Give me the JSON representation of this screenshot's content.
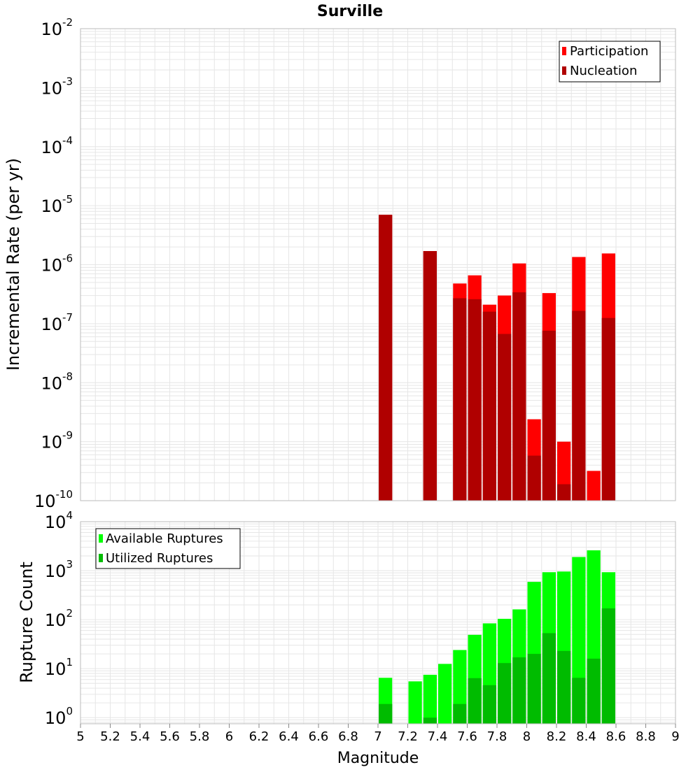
{
  "title": "Surville",
  "colors": {
    "participation": "#ff0000",
    "nucleation": "#b00000",
    "available": "#00ff00",
    "utilized": "#00bb00",
    "grid": "#e6e6e6",
    "frame": "#bbbbbb"
  },
  "chart_data": [
    {
      "type": "bar",
      "scale": "log",
      "title": "Surville",
      "ylabel": "Incremental Rate (per yr)",
      "ylim": [
        1e-10,
        0.01
      ],
      "yticks": [
        {
          "base": "10",
          "exp": "-2"
        },
        {
          "base": "10",
          "exp": "-3"
        },
        {
          "base": "10",
          "exp": "-4"
        },
        {
          "base": "10",
          "exp": "-5"
        },
        {
          "base": "10",
          "exp": "-6"
        },
        {
          "base": "10",
          "exp": "-7"
        },
        {
          "base": "10",
          "exp": "-8"
        },
        {
          "base": "10",
          "exp": "-9"
        },
        {
          "base": "10",
          "exp": "-10"
        }
      ],
      "legend_position": "top-right",
      "series": [
        {
          "name": "Participation",
          "color": "#ff0000",
          "points": [
            {
              "x": 7.05,
              "y": 7e-06
            },
            {
              "x": 7.35,
              "y": 1.7e-06
            },
            {
              "x": 7.55,
              "y": 4.8e-07
            },
            {
              "x": 7.65,
              "y": 6.6e-07
            },
            {
              "x": 7.75,
              "y": 2.1e-07
            },
            {
              "x": 7.85,
              "y": 3e-07
            },
            {
              "x": 7.95,
              "y": 1.05e-06
            },
            {
              "x": 8.05,
              "y": 2.4e-09
            },
            {
              "x": 8.15,
              "y": 3.3e-07
            },
            {
              "x": 8.25,
              "y": 1e-09
            },
            {
              "x": 8.35,
              "y": 1.35e-06
            },
            {
              "x": 8.45,
              "y": 3.2e-10
            },
            {
              "x": 8.55,
              "y": 1.55e-06
            }
          ]
        },
        {
          "name": "Nucleation",
          "color": "#b00000",
          "points": [
            {
              "x": 7.05,
              "y": 7e-06
            },
            {
              "x": 7.35,
              "y": 1.7e-06
            },
            {
              "x": 7.55,
              "y": 2.7e-07
            },
            {
              "x": 7.65,
              "y": 2.6e-07
            },
            {
              "x": 7.75,
              "y": 1.6e-07
            },
            {
              "x": 7.85,
              "y": 6.7e-08
            },
            {
              "x": 7.95,
              "y": 3.4e-07
            },
            {
              "x": 8.05,
              "y": 5.8e-10
            },
            {
              "x": 8.15,
              "y": 7.6e-08
            },
            {
              "x": 8.25,
              "y": 1.9e-10
            },
            {
              "x": 8.35,
              "y": 1.65e-07
            },
            {
              "x": 8.55,
              "y": 1.25e-07
            }
          ]
        }
      ]
    },
    {
      "type": "bar",
      "scale": "log",
      "ylabel": "Rupture Count",
      "xlabel": "Magnitude",
      "ylim": [
        0.75,
        10000
      ],
      "xlim": [
        5,
        9
      ],
      "yticks": [
        {
          "base": "10",
          "exp": "4"
        },
        {
          "base": "10",
          "exp": "3"
        },
        {
          "base": "10",
          "exp": "2"
        },
        {
          "base": "10",
          "exp": "1"
        },
        {
          "base": "10",
          "exp": "0"
        }
      ],
      "xticks": [
        "5",
        "5.2",
        "5.4",
        "5.6",
        "5.8",
        "6",
        "6.2",
        "6.4",
        "6.6",
        "6.8",
        "7",
        "7.2",
        "7.4",
        "7.6",
        "7.8",
        "8",
        "8.2",
        "8.4",
        "8.6",
        "8.8",
        "9"
      ],
      "legend_position": "top-left",
      "series": [
        {
          "name": "Available Ruptures",
          "color": "#00ff00",
          "points": [
            {
              "x": 7.05,
              "y": 6.5
            },
            {
              "x": 7.25,
              "y": 5.5
            },
            {
              "x": 7.35,
              "y": 7.5
            },
            {
              "x": 7.45,
              "y": 12.5
            },
            {
              "x": 7.55,
              "y": 24
            },
            {
              "x": 7.65,
              "y": 49
            },
            {
              "x": 7.75,
              "y": 84
            },
            {
              "x": 7.85,
              "y": 104
            },
            {
              "x": 7.95,
              "y": 162
            },
            {
              "x": 8.05,
              "y": 590
            },
            {
              "x": 8.15,
              "y": 930
            },
            {
              "x": 8.25,
              "y": 960
            },
            {
              "x": 8.35,
              "y": 1900
            },
            {
              "x": 8.45,
              "y": 2600
            },
            {
              "x": 8.55,
              "y": 930
            }
          ]
        },
        {
          "name": "Utilized Ruptures",
          "color": "#00bb00",
          "points": [
            {
              "x": 7.05,
              "y": 1.9
            },
            {
              "x": 7.35,
              "y": 1.0
            },
            {
              "x": 7.55,
              "y": 1.9
            },
            {
              "x": 7.65,
              "y": 6.4
            },
            {
              "x": 7.75,
              "y": 4.6
            },
            {
              "x": 7.85,
              "y": 13
            },
            {
              "x": 7.95,
              "y": 17
            },
            {
              "x": 8.05,
              "y": 20
            },
            {
              "x": 8.15,
              "y": 53
            },
            {
              "x": 8.25,
              "y": 23
            },
            {
              "x": 8.35,
              "y": 6.5
            },
            {
              "x": 8.45,
              "y": 16
            },
            {
              "x": 8.55,
              "y": 170
            }
          ]
        }
      ]
    }
  ]
}
